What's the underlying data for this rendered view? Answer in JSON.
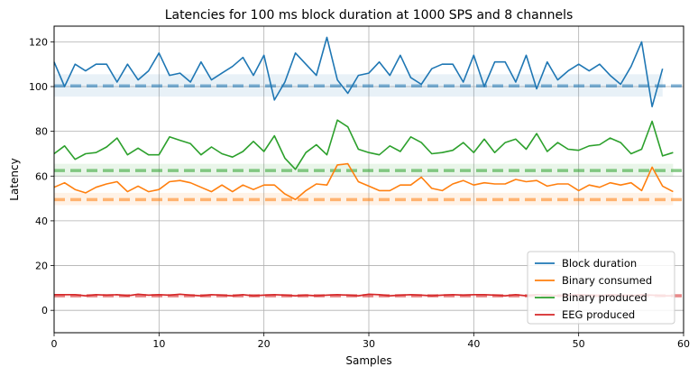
{
  "chart_data": {
    "type": "line",
    "title": "Latencies for 100 ms block duration at 1000 SPS and 8 channels",
    "xlabel": "Samples",
    "ylabel": "Latency",
    "xlim": [
      0,
      60
    ],
    "ylim": [
      -10,
      127
    ],
    "xticks": [
      0,
      10,
      20,
      30,
      40,
      50,
      60
    ],
    "yticks": [
      0,
      20,
      40,
      60,
      80,
      100,
      120
    ],
    "grid": true,
    "legend_position": "lower-right",
    "series": [
      {
        "name": "Block duration",
        "color": "#1f77b4",
        "mean": 100.3,
        "band": [
          95.5,
          105.5
        ],
        "x": [
          0,
          1,
          2,
          3,
          4,
          5,
          6,
          7,
          8,
          9,
          10,
          11,
          12,
          13,
          14,
          15,
          16,
          17,
          18,
          19,
          20,
          21,
          22,
          23,
          24,
          25,
          26,
          27,
          28,
          29,
          30,
          31,
          32,
          33,
          34,
          35,
          36,
          37,
          38,
          39,
          40,
          41,
          42,
          43,
          44,
          45,
          46,
          47,
          48,
          49,
          50,
          51,
          52,
          53,
          54,
          55,
          56,
          57,
          58
        ],
        "values": [
          111,
          100,
          110,
          107,
          110,
          110,
          102,
          110,
          103,
          107,
          115,
          105,
          106,
          102,
          111,
          103,
          106,
          109,
          113,
          105,
          114,
          94,
          102,
          115,
          110,
          105,
          122,
          103,
          97,
          105,
          106,
          111,
          105,
          114,
          104,
          101,
          108,
          110,
          110,
          102,
          114,
          100,
          111,
          111,
          102,
          114,
          99,
          111,
          103,
          107,
          110,
          107,
          110,
          105,
          101,
          109,
          120,
          91,
          108
        ]
      },
      {
        "name": "Binary consumed",
        "color": "#ff7f0e",
        "mean": 49.5,
        "band": [
          47,
          52.5
        ],
        "x": [
          0,
          1,
          2,
          3,
          4,
          5,
          6,
          7,
          8,
          9,
          10,
          11,
          12,
          13,
          14,
          15,
          16,
          17,
          18,
          19,
          20,
          21,
          22,
          23,
          24,
          25,
          26,
          27,
          28,
          29,
          30,
          31,
          32,
          33,
          34,
          35,
          36,
          37,
          38,
          39,
          40,
          41,
          42,
          43,
          44,
          45,
          46,
          47,
          48,
          49,
          50,
          51,
          52,
          53,
          54,
          55,
          56,
          57,
          58,
          59
        ],
        "values": [
          55,
          57,
          54,
          52.5,
          55,
          56.5,
          57.5,
          53,
          55.5,
          53,
          54,
          57.5,
          58,
          57,
          55,
          53,
          56,
          53,
          56,
          54,
          56,
          56,
          52,
          49.5,
          53.5,
          56.5,
          56,
          65,
          65.5,
          57.5,
          55.5,
          53.5,
          53.5,
          56,
          56,
          59.5,
          54.5,
          53.5,
          56.5,
          58,
          56,
          57,
          56.5,
          56.5,
          58.5,
          57.5,
          58,
          55.5,
          56.5,
          56.5,
          53.5,
          56,
          55,
          57,
          56,
          57,
          53.5,
          64,
          55.5,
          53
        ]
      },
      {
        "name": "Binary produced",
        "color": "#2ca02c",
        "mean": 62.5,
        "band": [
          60,
          65.5
        ],
        "x": [
          0,
          1,
          2,
          3,
          4,
          5,
          6,
          7,
          8,
          9,
          10,
          11,
          12,
          13,
          14,
          15,
          16,
          17,
          18,
          19,
          20,
          21,
          22,
          23,
          24,
          25,
          26,
          27,
          28,
          29,
          30,
          31,
          32,
          33,
          34,
          35,
          36,
          37,
          38,
          39,
          40,
          41,
          42,
          43,
          44,
          45,
          46,
          47,
          48,
          49,
          50,
          51,
          52,
          53,
          54,
          55,
          56,
          57,
          58,
          59
        ],
        "values": [
          70,
          73.5,
          67.5,
          70,
          70.5,
          73,
          77,
          69.5,
          72.5,
          69.5,
          69.5,
          77.5,
          76,
          74.5,
          69.5,
          73,
          70,
          68.5,
          71,
          75.5,
          71,
          78,
          68,
          63,
          70.5,
          74,
          69.5,
          85,
          82,
          72,
          70.5,
          69.5,
          73.5,
          71,
          77.5,
          75,
          70,
          70.5,
          71.5,
          75,
          70.5,
          76.5,
          70.5,
          75,
          76.5,
          72,
          79,
          71,
          75,
          72,
          71.5,
          73.5,
          74,
          77,
          75,
          70,
          72,
          84.5,
          69,
          70.5
        ]
      },
      {
        "name": "EEG produced",
        "color": "#d62728",
        "mean": 6.5,
        "band": [
          5.8,
          7.2
        ],
        "x": [
          0,
          1,
          2,
          3,
          4,
          5,
          6,
          7,
          8,
          9,
          10,
          11,
          12,
          13,
          14,
          15,
          16,
          17,
          18,
          19,
          20,
          21,
          22,
          23,
          24,
          25,
          26,
          27,
          28,
          29,
          30,
          31,
          32,
          33,
          34,
          35,
          36,
          37,
          38,
          39,
          40,
          41,
          42,
          43,
          44,
          45,
          46,
          47,
          48,
          49,
          50,
          51,
          52,
          53,
          54,
          55,
          56,
          57,
          58,
          59
        ],
        "values": [
          7,
          7,
          7,
          6.5,
          7,
          6.8,
          7,
          6.5,
          7.2,
          6.8,
          7,
          6.8,
          7.2,
          6.8,
          6.5,
          7,
          6.8,
          6.5,
          7,
          6.5,
          6.8,
          7,
          6.8,
          6.5,
          6.8,
          6.5,
          6.8,
          7,
          6.8,
          6.5,
          7.2,
          7,
          6.5,
          6.8,
          7,
          6.8,
          6.5,
          6.8,
          7,
          6.8,
          7,
          7,
          6.8,
          6.5,
          7,
          6.5,
          7,
          6.8,
          6.5,
          6.8,
          7,
          6.8,
          6.5,
          7,
          6.8,
          6.5,
          7,
          6.8,
          6.5,
          6.5
        ]
      }
    ]
  }
}
